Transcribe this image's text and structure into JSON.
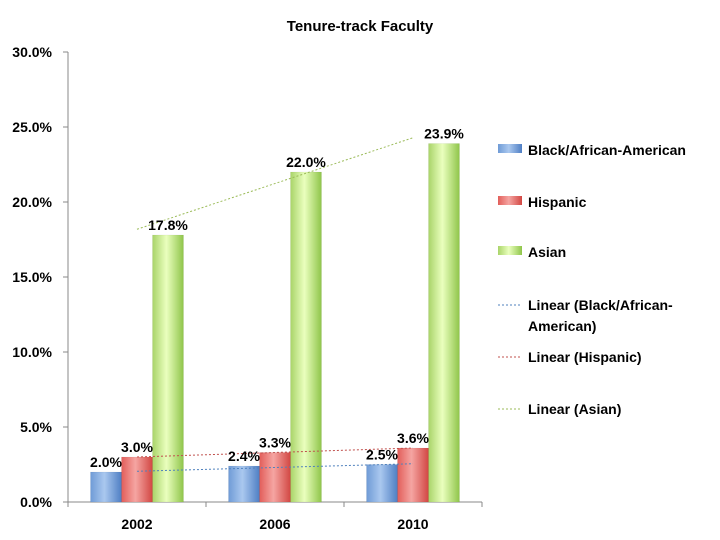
{
  "chart_data": {
    "type": "bar",
    "title": "Tenure-track Faculty",
    "categories": [
      "2002",
      "2006",
      "2010"
    ],
    "ylim": [
      0,
      30
    ],
    "y_ticks": [
      "0.0%",
      "5.0%",
      "10.0%",
      "15.0%",
      "20.0%",
      "25.0%",
      "30.0%"
    ],
    "grid": false,
    "legend_position": "right",
    "series": [
      {
        "name": "Black/African-American",
        "color": "#4f81bd",
        "values": [
          2.0,
          2.4,
          2.5
        ],
        "labels": [
          "2.0%",
          "2.4%",
          "2.5%"
        ]
      },
      {
        "name": "Hispanic",
        "color": "#c0504d",
        "values": [
          3.0,
          3.3,
          3.6
        ],
        "labels": [
          "3.0%",
          "3.3%",
          "3.6%"
        ]
      },
      {
        "name": "Asian",
        "color": "#9bbb59",
        "values": [
          17.8,
          22.0,
          23.9
        ],
        "labels": [
          "17.8%",
          "22.0%",
          "23.9%"
        ]
      }
    ],
    "trendlines": [
      {
        "name_lines": [
          "Linear (Black/African-",
          "American)"
        ],
        "series_index": 0,
        "color": "#4f81bd"
      },
      {
        "name_lines": [
          "Linear (Hispanic)"
        ],
        "series_index": 1,
        "color": "#c0504d"
      },
      {
        "name_lines": [
          "Linear (Asian)"
        ],
        "series_index": 2,
        "color": "#9bbb59"
      }
    ]
  }
}
